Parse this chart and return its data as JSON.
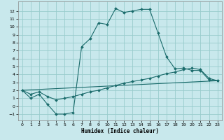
{
  "xlabel": "Humidex (Indice chaleur)",
  "xlim": [
    -0.5,
    23.5
  ],
  "ylim": [
    -1.8,
    13.2
  ],
  "yticks": [
    -1,
    0,
    1,
    2,
    3,
    4,
    5,
    6,
    7,
    8,
    9,
    10,
    11,
    12
  ],
  "xticks": [
    0,
    1,
    2,
    3,
    4,
    5,
    6,
    7,
    8,
    9,
    10,
    11,
    12,
    13,
    14,
    15,
    16,
    17,
    18,
    19,
    20,
    21,
    22,
    23
  ],
  "bg_color": "#c8e8ec",
  "grid_color": "#99cccc",
  "line_color": "#1a6b6b",
  "curve1_x": [
    0,
    1,
    2,
    3,
    4,
    5,
    6,
    7,
    8,
    9,
    10,
    11,
    12,
    13,
    14,
    15,
    16,
    17,
    18,
    19,
    20,
    21,
    22,
    23
  ],
  "curve1_y": [
    2.0,
    1.0,
    1.5,
    0.2,
    -1.0,
    -1.0,
    -0.8,
    7.5,
    8.5,
    10.5,
    10.3,
    12.3,
    11.8,
    12.0,
    12.2,
    12.2,
    9.2,
    6.2,
    4.7,
    4.8,
    4.5,
    4.5,
    3.3,
    3.2
  ],
  "curve2_x": [
    0,
    1,
    2,
    3,
    4,
    5,
    6,
    7,
    8,
    9,
    10,
    11,
    12,
    13,
    14,
    15,
    16,
    17,
    18,
    19,
    20,
    21,
    22,
    23
  ],
  "curve2_y": [
    2.0,
    1.5,
    1.8,
    1.2,
    0.8,
    1.0,
    1.2,
    1.5,
    1.8,
    2.0,
    2.3,
    2.6,
    2.9,
    3.1,
    3.3,
    3.5,
    3.8,
    4.1,
    4.3,
    4.6,
    4.8,
    4.6,
    3.5,
    3.2
  ],
  "curve3_x": [
    0,
    23
  ],
  "curve3_y": [
    2.0,
    3.2
  ]
}
